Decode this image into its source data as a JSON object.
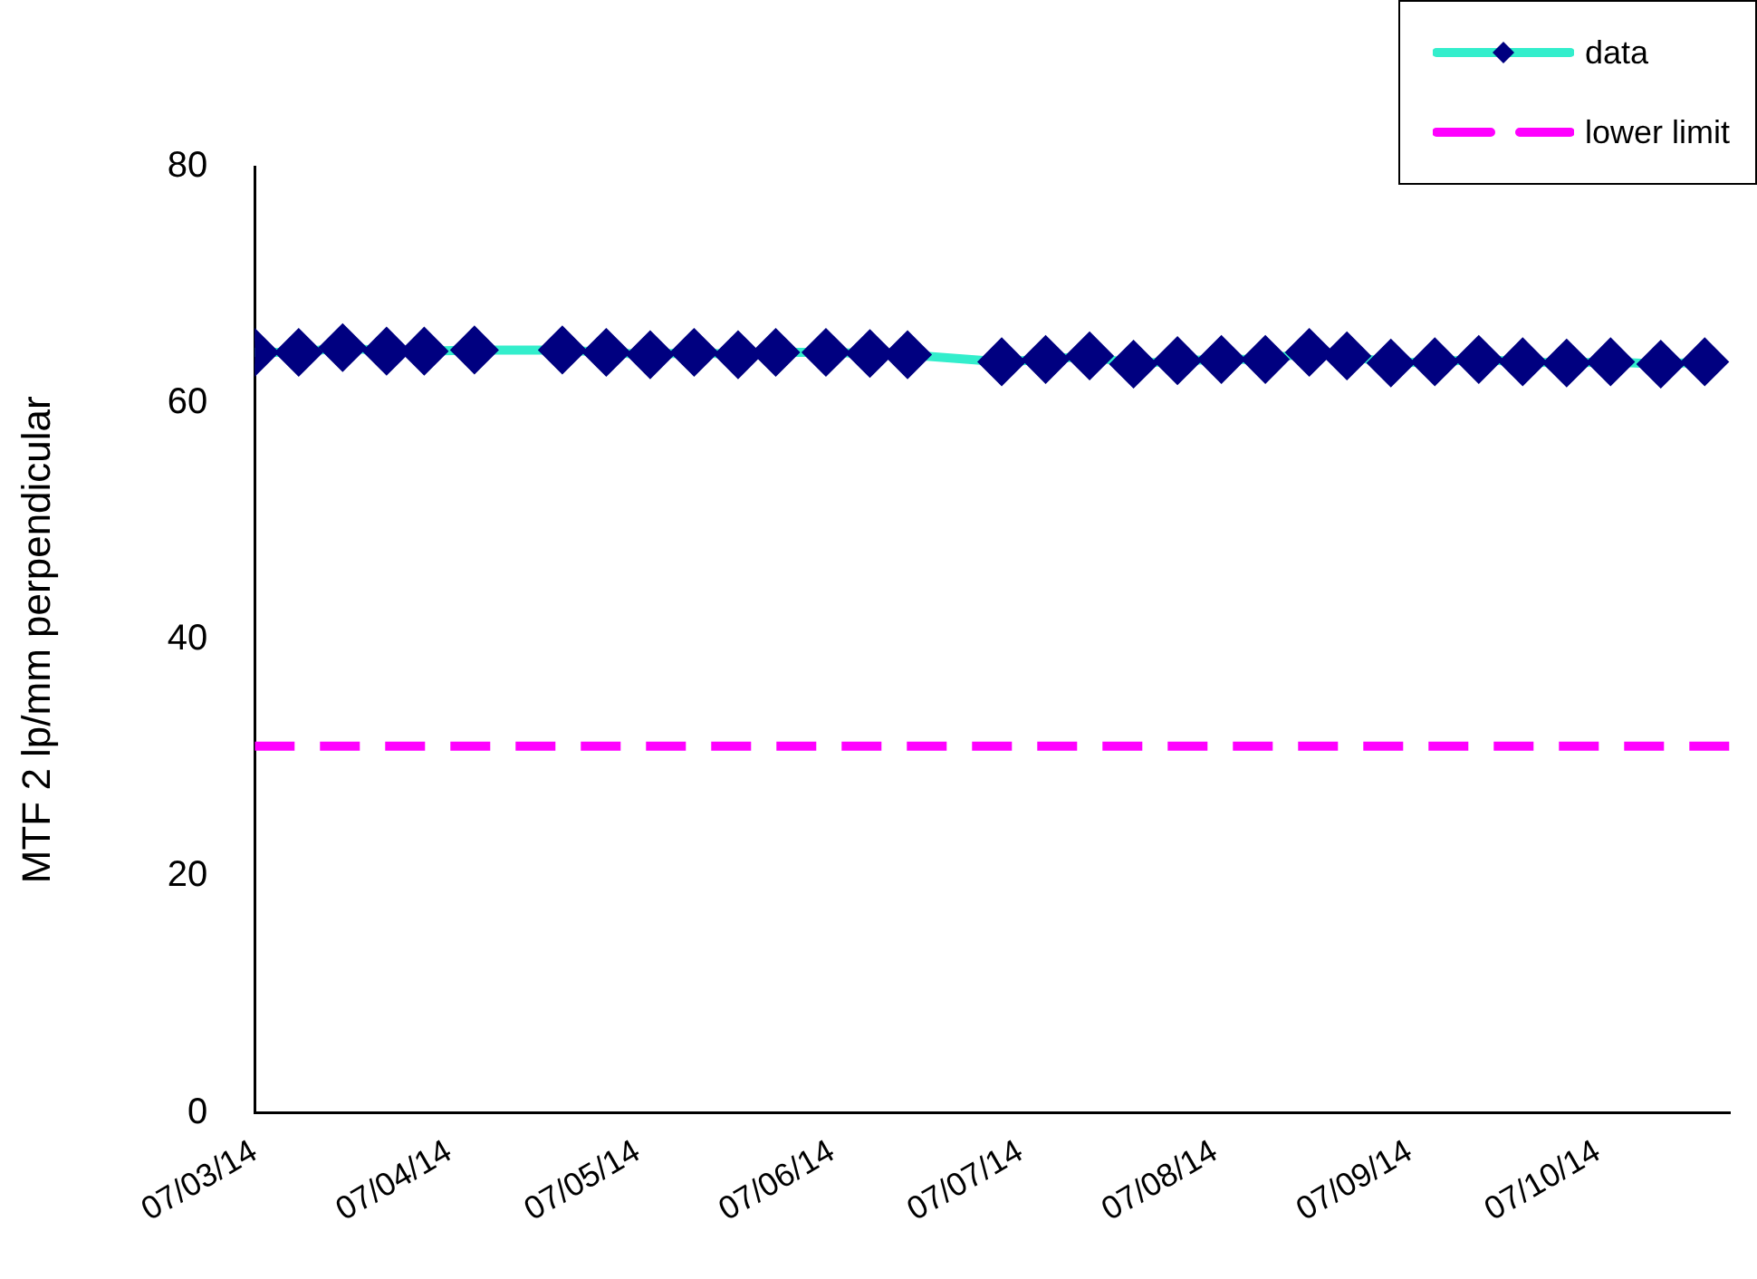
{
  "chart_data": {
    "type": "line",
    "ylabel": "MTF 2 lp/mm perpendicular",
    "x": [
      "2014-03-07",
      "2014-03-14",
      "2014-03-21",
      "2014-03-28",
      "2014-04-03",
      "2014-04-11",
      "2014-04-25",
      "2014-05-02",
      "2014-05-09",
      "2014-05-16",
      "2014-05-23",
      "2014-05-29",
      "2014-06-06",
      "2014-06-13",
      "2014-06-19",
      "2014-07-04",
      "2014-07-11",
      "2014-07-18",
      "2014-07-25",
      "2014-08-01",
      "2014-08-08",
      "2014-08-15",
      "2014-08-22",
      "2014-08-28",
      "2014-09-04",
      "2014-09-11",
      "2014-09-18",
      "2014-09-25",
      "2014-10-02",
      "2014-10-09",
      "2014-10-17",
      "2014-10-24"
    ],
    "series": [
      {
        "name": "data",
        "color": "#33eecc",
        "colors": [
          "#000080",
          "#000080",
          "#000080",
          "#000080",
          "#000080",
          "#000080",
          "#000080",
          "#000080",
          "#000080",
          "#000080",
          "#000080",
          "#000080",
          "#000080",
          "#000080",
          "#000080",
          "#000080",
          "#000080",
          "#000080",
          "#000080",
          "#000080",
          "#000080",
          "#000080",
          "#000080",
          "#000080",
          "#000080",
          "#000080",
          "#000080",
          "#000080",
          "#000080",
          "#000080",
          "#000080",
          "#000080"
        ],
        "values": [
          64.3,
          64.3,
          64.7,
          64.4,
          64.4,
          64.5,
          64.5,
          64.3,
          64.1,
          64.3,
          64.1,
          64.3,
          64.3,
          64.2,
          64.1,
          63.5,
          63.7,
          64.0,
          63.3,
          63.6,
          63.7,
          63.7,
          64.3,
          64.0,
          63.4,
          63.5,
          63.7,
          63.5,
          63.4,
          63.5,
          63.3,
          63.5
        ]
      }
    ],
    "ref_lines": [
      {
        "axis": "y",
        "value": 31,
        "label": "lower limit",
        "color": "#ff00ff",
        "line_style": "dashed"
      }
    ],
    "xlim": [
      "2014-03-07",
      "2014-10-28"
    ],
    "xticks": [
      {
        "value": "2014-03-07",
        "label": "07/03/14"
      },
      {
        "value": "2014-04-07",
        "label": "07/04/14"
      },
      {
        "value": "2014-05-07",
        "label": "07/05/14"
      },
      {
        "value": "2014-06-07",
        "label": "07/06/14"
      },
      {
        "value": "2014-07-07",
        "label": "07/07/14"
      },
      {
        "value": "2014-08-07",
        "label": "07/08/14"
      },
      {
        "value": "2014-09-07",
        "label": "07/09/14"
      },
      {
        "value": "2014-10-07",
        "label": "07/10/14"
      }
    ],
    "ylim": [
      0,
      80
    ],
    "yticks": [
      0,
      20,
      40,
      60,
      80
    ],
    "grid": false,
    "legend": "top right",
    "marker": "diamond",
    "line_style": "solid"
  }
}
